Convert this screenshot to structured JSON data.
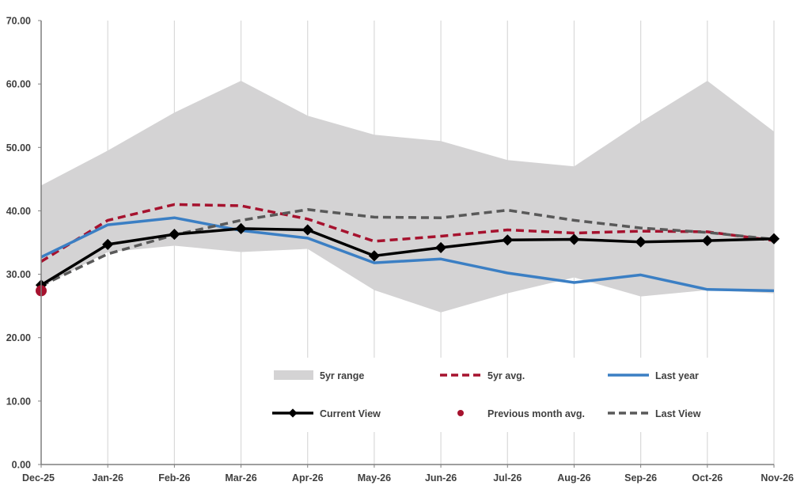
{
  "chart_data": {
    "type": "line",
    "title": "",
    "xlabel": "",
    "ylabel": "",
    "ylim": [
      0,
      70
    ],
    "yticks": [
      "0.00",
      "10.00",
      "20.00",
      "30.00",
      "40.00",
      "50.00",
      "60.00",
      "70.00"
    ],
    "ytick_values": [
      0,
      10,
      20,
      30,
      40,
      50,
      60,
      70
    ],
    "categories": [
      "Dec-25",
      "Jan-26",
      "Feb-26",
      "Mar-26",
      "Apr-26",
      "May-26",
      "Jun-26",
      "Jul-26",
      "Aug-26",
      "Sep-26",
      "Oct-26",
      "Nov-26"
    ],
    "grid": "vertical",
    "legend_position": "lower-center",
    "range": {
      "name": "5yr range",
      "color": "#d4d3d4",
      "low": [
        28.0,
        33.5,
        34.5,
        33.5,
        34.0,
        27.5,
        24.0,
        27.0,
        29.5,
        26.5,
        27.5,
        27.0
      ],
      "high": [
        44.0,
        49.5,
        55.5,
        60.5,
        55.0,
        52.0,
        51.0,
        48.0,
        47.0,
        54.0,
        60.5,
        52.5
      ]
    },
    "series": [
      {
        "name": "5yr avg.",
        "color": "#a6122e",
        "style": "dashed",
        "values": [
          32.0,
          38.5,
          41.0,
          40.8,
          38.7,
          35.2,
          36.0,
          37.0,
          36.5,
          36.8,
          36.7,
          35.3
        ]
      },
      {
        "name": "Last year",
        "color": "#3b7fc4",
        "style": "solid",
        "values": [
          32.7,
          37.8,
          38.9,
          36.9,
          35.7,
          31.8,
          32.4,
          30.2,
          28.7,
          29.9,
          27.6,
          27.4
        ]
      },
      {
        "name": "Last View",
        "color": "#595959",
        "style": "dashed",
        "values": [
          28.2,
          33.2,
          36.2,
          38.5,
          40.2,
          39.0,
          38.9,
          40.1,
          38.5,
          37.3,
          36.6,
          35.5
        ]
      },
      {
        "name": "Current View",
        "color": "#000000",
        "style": "solid-marker",
        "values": [
          28.3,
          34.7,
          36.3,
          37.2,
          37.0,
          32.9,
          34.2,
          35.4,
          35.5,
          35.1,
          35.3,
          35.6
        ]
      }
    ],
    "previous_month_avg": {
      "name": "Previous month avg.",
      "color": "#a6122e",
      "category": "Dec-25",
      "value": 27.4
    },
    "legend": [
      "5yr range",
      "5yr avg.",
      "Last year",
      "Current View",
      "Previous month avg.",
      "Last View"
    ]
  }
}
